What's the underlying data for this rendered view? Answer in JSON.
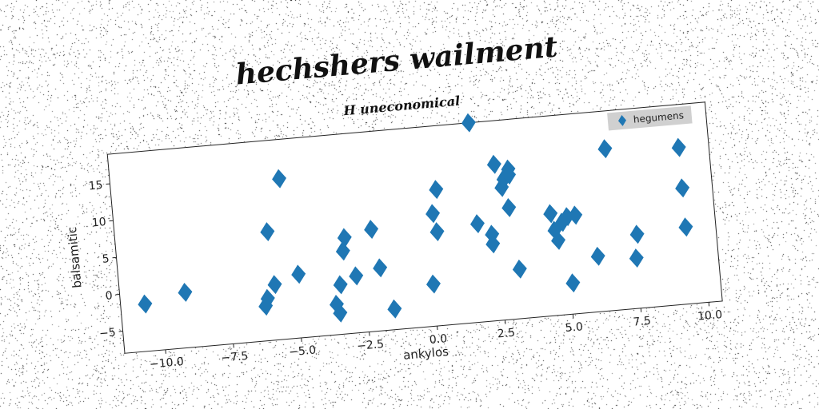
{
  "chart_data": {
    "type": "scatter",
    "title": "hechshers wailment",
    "subtitle": "H uneconomical",
    "xlabel": "ankylos",
    "ylabel": "balsamitic",
    "xlim": [
      -11.5,
      10.5
    ],
    "ylim": [
      -8,
      19
    ],
    "xticks": [
      -10.0,
      -7.5,
      -5.0,
      -2.5,
      0.0,
      2.5,
      5.0,
      7.5,
      10.0
    ],
    "xtick_labels": [
      "−10.0",
      "−7.5",
      "−5.0",
      "−2.5",
      "0.0",
      "2.5",
      "5.0",
      "7.5",
      "10.0"
    ],
    "yticks": [
      -5,
      0,
      5,
      10,
      15
    ],
    "ytick_labels": [
      "−5",
      "0",
      "5",
      "10",
      "15"
    ],
    "grid": false,
    "legend_position": "top-right",
    "marker": "diamond",
    "color": "#1f77b4",
    "series": [
      {
        "name": "hegumens",
        "points": [
          [
            -10.6,
            -1.6
          ],
          [
            -9.1,
            -0.5
          ],
          [
            -6.2,
            -3.3
          ],
          [
            -6.1,
            -2.3
          ],
          [
            -5.8,
            -0.5
          ],
          [
            -5.9,
            6.7
          ],
          [
            -5.3,
            13.7
          ],
          [
            -4.9,
            0.6
          ],
          [
            -3.6,
            -3.9
          ],
          [
            -3.5,
            -5.1
          ],
          [
            -3.4,
            -1.3
          ],
          [
            -3.2,
            3.2
          ],
          [
            -3.1,
            5.0
          ],
          [
            -2.8,
            -0.3
          ],
          [
            -2.1,
            5.8
          ],
          [
            -1.9,
            0.5
          ],
          [
            -1.5,
            -5.2
          ],
          [
            0.0,
            -2.3
          ],
          [
            0.2,
            7.2
          ],
          [
            0.3,
            4.7
          ],
          [
            0.4,
            10.4
          ],
          [
            1.8,
            19.0
          ],
          [
            1.8,
            5.3
          ],
          [
            2.3,
            3.7
          ],
          [
            2.3,
            2.4
          ],
          [
            2.6,
            13.1
          ],
          [
            2.8,
            9.9
          ],
          [
            2.9,
            11.0
          ],
          [
            3.0,
            7.1
          ],
          [
            3.1,
            12.3
          ],
          [
            3.1,
            11.5
          ],
          [
            3.2,
            -1.3
          ],
          [
            4.5,
            5.8
          ],
          [
            4.6,
            3.5
          ],
          [
            4.7,
            2.1
          ],
          [
            4.9,
            4.5
          ],
          [
            5.1,
            5.2
          ],
          [
            5.1,
            -3.8
          ],
          [
            5.4,
            5.3
          ],
          [
            6.1,
            -0.5
          ],
          [
            6.7,
            13.9
          ],
          [
            7.5,
            -1.2
          ],
          [
            7.6,
            2.0
          ],
          [
            9.4,
            13.2
          ],
          [
            9.4,
            7.7
          ],
          [
            9.4,
            2.4
          ]
        ]
      }
    ]
  }
}
